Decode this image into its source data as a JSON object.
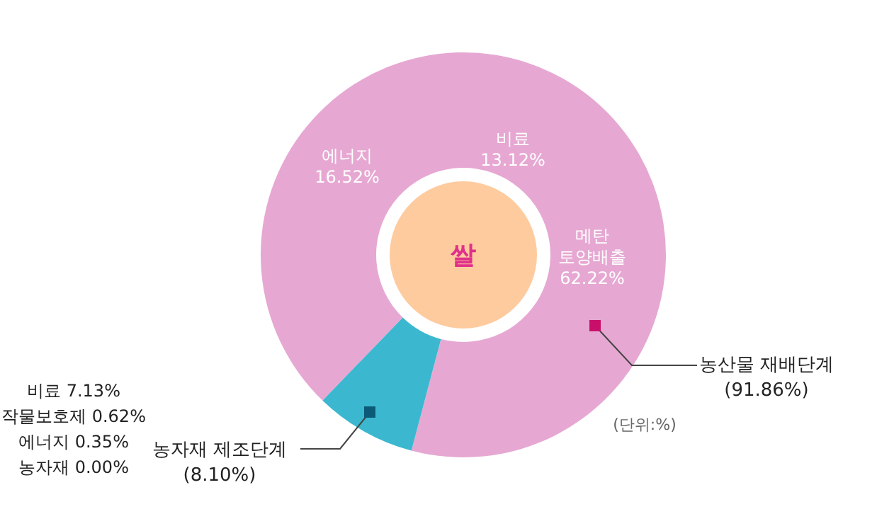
{
  "chart_data": {
    "type": "donut",
    "categories": [
      "농산물 재배단계",
      "농자재 제조단계"
    ],
    "values": [
      91.86,
      8.1
    ],
    "colors": [
      "#e6a8d2",
      "#3bb8cf"
    ],
    "value_labels": [
      "(91.86%)",
      "(8.10%)"
    ],
    "legend": false,
    "annotations": [
      "쌀",
      "에너지\n16.52%",
      "비료\n13.12%",
      "메탄\n토양배출\n62.22%",
      "비료 7.13%\n작물보호제 0.62%\n에너지 0.35%\n농자재 0.00%",
      "(단위:%)"
    ]
  }
}
